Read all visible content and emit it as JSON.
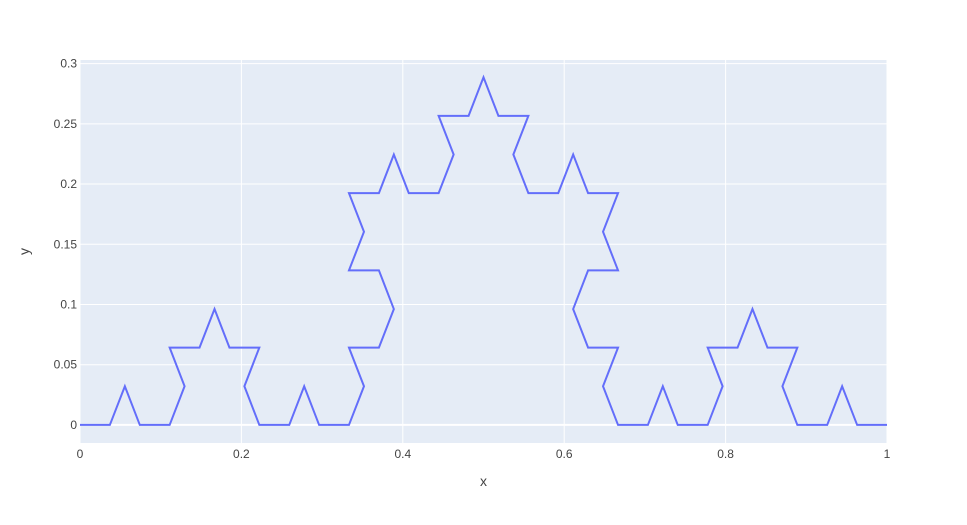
{
  "chart_data": {
    "type": "line",
    "title": "",
    "xlabel": "x",
    "ylabel": "y",
    "xlim": [
      0,
      1
    ],
    "ylim": [
      -0.015,
      0.303
    ],
    "x_ticks": [
      0,
      0.2,
      0.4,
      0.6,
      0.8,
      1
    ],
    "x_tick_labels": [
      "0",
      "0.2",
      "0.4",
      "0.6",
      "0.8",
      "1"
    ],
    "y_ticks": [
      0,
      0.05,
      0.1,
      0.15,
      0.2,
      0.25,
      0.3
    ],
    "y_tick_labels": [
      "0",
      "0.05",
      "0.1",
      "0.15",
      "0.2",
      "0.25",
      "0.3"
    ],
    "grid": true,
    "legend": "none",
    "colors": {
      "plot_background": "#e5ecf6",
      "grid": "#ffffff",
      "line": "#636efa"
    },
    "series": [
      {
        "x": [
          0,
          0.037,
          0.0556,
          0.0741,
          0.1111,
          0.1296,
          0.1111,
          0.1481,
          0.1667,
          0.1852,
          0.2222,
          0.2037,
          0.2222,
          0.2593,
          0.2778,
          0.2963,
          0.3333,
          0.3519,
          0.3333,
          0.3704,
          0.3889,
          0.3704,
          0.3333,
          0.3519,
          0.3333,
          0.3704,
          0.3889,
          0.4074,
          0.4444,
          0.463,
          0.4444,
          0.4815,
          0.5,
          0.5185,
          0.5556,
          0.537,
          0.5556,
          0.5926,
          0.6111,
          0.6296,
          0.6667,
          0.6481,
          0.6667,
          0.6296,
          0.6111,
          0.6296,
          0.6667,
          0.6481,
          0.6667,
          0.7037,
          0.7222,
          0.7407,
          0.7778,
          0.7963,
          0.7778,
          0.8148,
          0.8333,
          0.8519,
          0.8889,
          0.8704,
          0.8889,
          0.9259,
          0.9444,
          0.963,
          1
        ],
        "y": [
          0,
          0,
          0.0321,
          0,
          0,
          0.0321,
          0.0642,
          0.0642,
          0.0962,
          0.0642,
          0.0642,
          0.0321,
          0,
          0,
          0.0321,
          0,
          0,
          0.0321,
          0.0642,
          0.0642,
          0.0962,
          0.1283,
          0.1283,
          0.1604,
          0.1925,
          0.1925,
          0.2245,
          0.1925,
          0.1925,
          0.2245,
          0.2566,
          0.2566,
          0.2887,
          0.2566,
          0.2566,
          0.2245,
          0.1925,
          0.1925,
          0.2245,
          0.1925,
          0.1925,
          0.1604,
          0.1283,
          0.1283,
          0.0962,
          0.0642,
          0.0642,
          0.0321,
          0,
          0,
          0.0321,
          0,
          0,
          0.0321,
          0.0642,
          0.0642,
          0.0962,
          0.0642,
          0.0642,
          0.0321,
          0,
          0,
          0.0321,
          0,
          0
        ]
      }
    ]
  }
}
